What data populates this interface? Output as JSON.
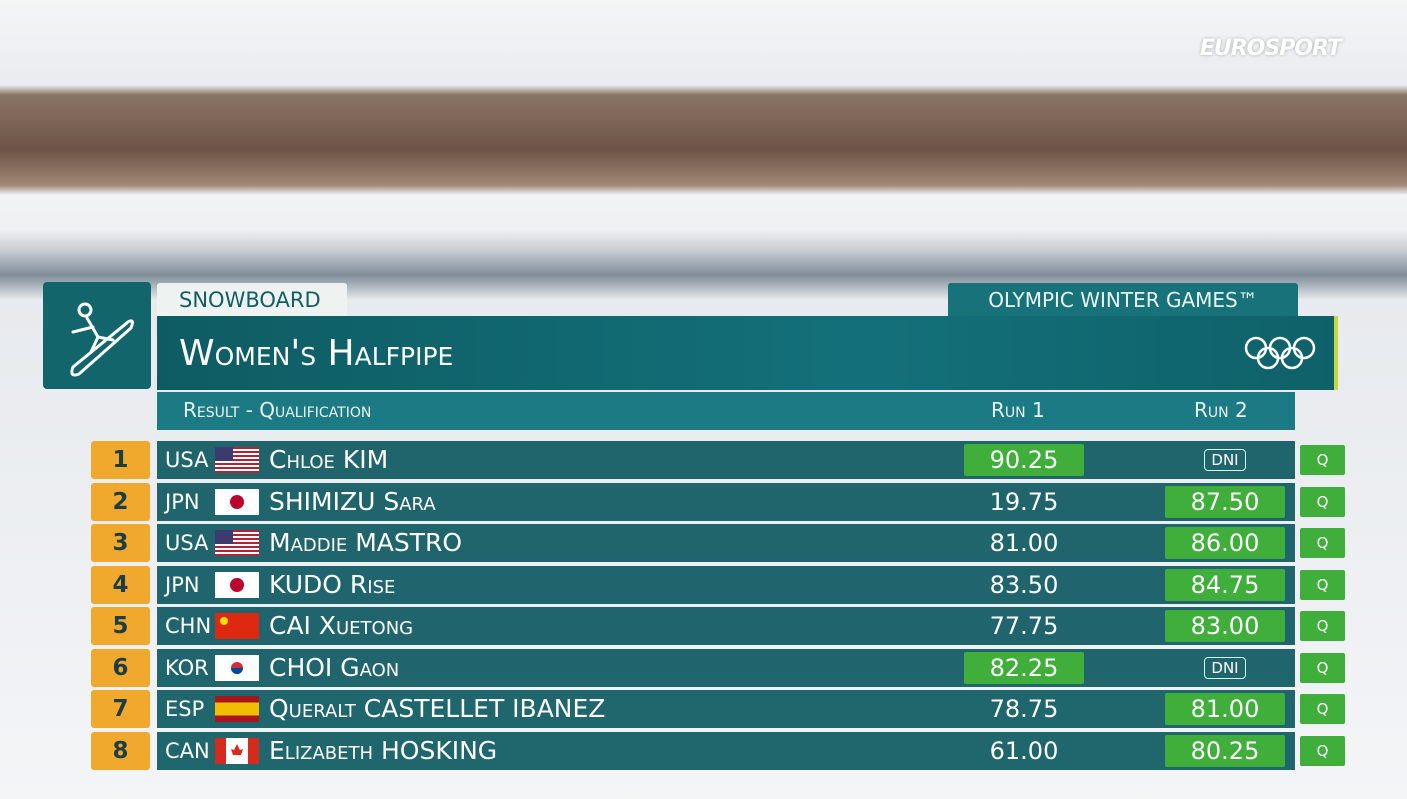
{
  "header": {
    "network": "EUROSPORT",
    "sport": "SNOWBOARD",
    "games": "OLYMPIC WINTER GAMES™",
    "title": "Women's Halfpipe",
    "subtitle": "Result - Qualification"
  },
  "table": {
    "columns": [
      "Run 1",
      "Run 2"
    ],
    "rows": [
      {
        "rank": 1,
        "country": "USA",
        "name": "Chloe KIM",
        "run1": "90.25",
        "run2": "DNI",
        "status": "Q"
      },
      {
        "rank": 2,
        "country": "JPN",
        "name": "SHIMIZU Sara",
        "run1": "19.75",
        "run2": "87.50",
        "status": "Q"
      },
      {
        "rank": 3,
        "country": "USA",
        "name": "Maddie MASTRO",
        "run1": "81.00",
        "run2": "86.00",
        "status": "Q"
      },
      {
        "rank": 4,
        "country": "JPN",
        "name": "KUDO Rise",
        "run1": "83.50",
        "run2": "84.75",
        "status": "Q"
      },
      {
        "rank": 5,
        "country": "CHN",
        "name": "CAI Xuetong",
        "run1": "77.75",
        "run2": "83.00",
        "status": "Q"
      },
      {
        "rank": 6,
        "country": "KOR",
        "name": "CHOI Gaon",
        "run1": "82.25",
        "run2": "DNI",
        "status": "Q"
      },
      {
        "rank": 7,
        "country": "ESP",
        "name": "Queralt CASTELLET IBANEZ",
        "run1": "78.75",
        "run2": "81.00",
        "status": "Q"
      },
      {
        "rank": 8,
        "country": "CAN",
        "name": "Elizabeth HOSKING",
        "run1": "61.00",
        "run2": "80.25",
        "status": "Q"
      }
    ]
  }
}
